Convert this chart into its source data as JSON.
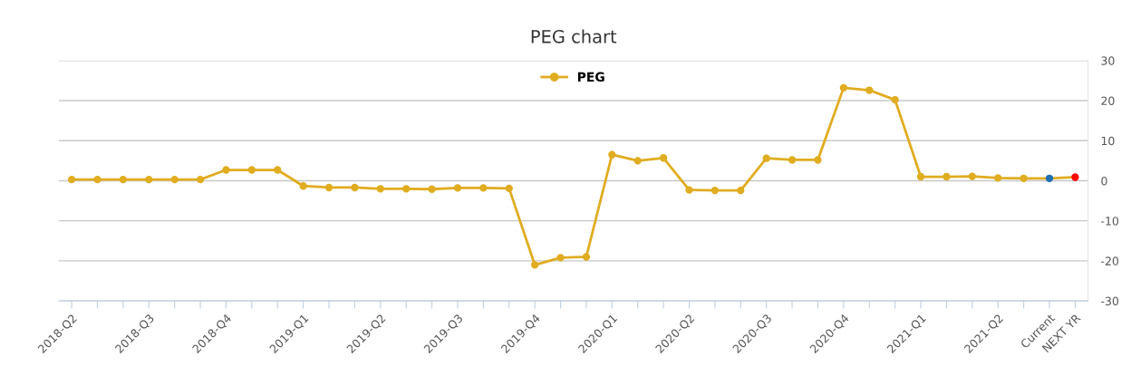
{
  "chart_data": {
    "type": "line",
    "title": "PEG chart",
    "categories": [
      "2018-Q2",
      null,
      null,
      "2018-Q3",
      null,
      null,
      "2018-Q4",
      null,
      null,
      "2019-Q1",
      null,
      null,
      "2019-Q2",
      null,
      null,
      "2019-Q3",
      null,
      null,
      "2019-Q4",
      null,
      null,
      "2020-Q1",
      null,
      null,
      "2020-Q2",
      null,
      null,
      "2020-Q3",
      null,
      null,
      "2020-Q4",
      null,
      null,
      "2021-Q1",
      null,
      null,
      "2021-Q2",
      null,
      "Current",
      "NEXT YR"
    ],
    "series": [
      {
        "name": "PEG",
        "color": "#e0ac20",
        "colors": [
          "#e0ac20",
          "#e0ac20",
          "#e0ac20",
          "#e0ac20",
          "#e0ac20",
          "#e0ac20",
          "#e0ac20",
          "#e0ac20",
          "#e0ac20",
          "#e0ac20",
          "#e0ac20",
          "#e0ac20",
          "#e0ac20",
          "#e0ac20",
          "#e0ac20",
          "#e0ac20",
          "#e0ac20",
          "#e0ac20",
          "#e0ac20",
          "#e0ac20",
          "#e0ac20",
          "#e0ac20",
          "#e0ac20",
          "#e0ac20",
          "#e0ac20",
          "#e0ac20",
          "#e0ac20",
          "#e0ac20",
          "#e0ac20",
          "#e0ac20",
          "#e0ac20",
          "#e0ac20",
          "#e0ac20",
          "#e0ac20",
          "#e0ac20",
          "#e0ac20",
          "#e0ac20",
          "#e0ac20",
          "#1f6fb0",
          "#ff0000"
        ],
        "values": [
          0.3,
          0.3,
          0.3,
          0.3,
          0.3,
          0.3,
          2.7,
          2.7,
          2.7,
          -1.3,
          -1.7,
          -1.7,
          -2.0,
          -2.0,
          -2.1,
          -1.8,
          -1.8,
          -1.9,
          -21,
          -19.2,
          -19,
          6.5,
          5,
          5.7,
          -2.3,
          -2.4,
          -2.4,
          5.6,
          5.2,
          5.2,
          23.2,
          22.6,
          20.2,
          1.0,
          1.0,
          1.1,
          0.7,
          0.6,
          0.6,
          0.9
        ]
      }
    ],
    "ylim": [
      -30,
      30
    ],
    "yticks": [
      -30,
      -20,
      -10,
      0,
      10,
      20,
      30
    ],
    "grid": "y",
    "legend": "top",
    "marker": "circle",
    "line_style": "solid"
  }
}
